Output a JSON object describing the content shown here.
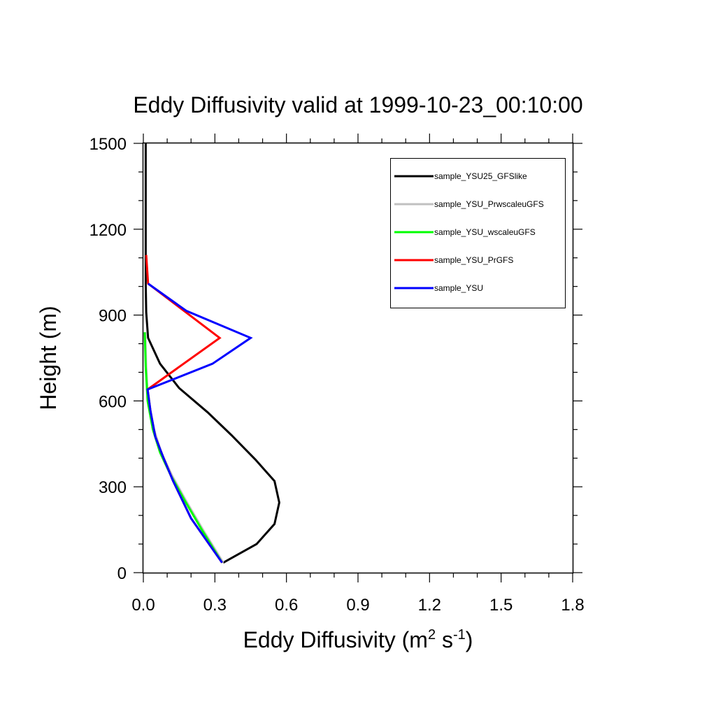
{
  "chart_data": {
    "type": "line",
    "title": "Eddy Diffusivity valid at 1999-10-23_00:10:00",
    "xlabel": {
      "base": "Eddy Diffusivity (m",
      "sup1": "2",
      "mid": " s",
      "sup2": "-1",
      "end": ")"
    },
    "ylabel": "Height (m)",
    "xlim": [
      0,
      1.8
    ],
    "ylim": [
      0,
      1500
    ],
    "x_major_ticks": [
      0,
      0.3,
      0.6,
      0.9,
      1.2,
      1.5,
      1.8
    ],
    "x_tick_labels": [
      "0.0",
      "0.3",
      "0.6",
      "0.9",
      "1.2",
      "1.5",
      "1.8"
    ],
    "x_minor_ticks": [
      0.1,
      0.2,
      0.4,
      0.5,
      0.7,
      0.8,
      1.0,
      1.1,
      1.3,
      1.4,
      1.6,
      1.7
    ],
    "y_major_ticks": [
      0,
      300,
      600,
      900,
      1200,
      1500
    ],
    "y_tick_labels": [
      "0",
      "300",
      "600",
      "900",
      "1200",
      "1500"
    ],
    "y_minor_ticks": [
      100,
      200,
      400,
      500,
      700,
      800,
      1000,
      1100,
      1300,
      1400
    ],
    "legend_position": "top-right",
    "series": [
      {
        "name": "sample_YSU25_GFSlike",
        "color": "#000000",
        "x": [
          0.335,
          0.475,
          0.55,
          0.57,
          0.55,
          0.47,
          0.37,
          0.27,
          0.15,
          0.07,
          0.02,
          0.012,
          0.01,
          0.01,
          0.01
        ],
        "y": [
          35,
          100,
          170,
          245,
          320,
          395,
          480,
          560,
          645,
          730,
          820,
          910,
          1010,
          1200,
          1500
        ]
      },
      {
        "name": "sample_YSU_PrwscaleuGFS",
        "color": "#c0c0c0",
        "x": [
          0.335,
          0.25,
          0.18,
          0.12,
          0.075,
          0.045,
          0.02,
          0.012,
          0.008
        ],
        "y": [
          35,
          150,
          250,
          340,
          420,
          500,
          600,
          720,
          840
        ]
      },
      {
        "name": "sample_YSU_wscaleuGFS",
        "color": "#00ff00",
        "x": [
          0.33,
          0.245,
          0.175,
          0.115,
          0.07,
          0.04,
          0.018,
          0.01,
          0.006
        ],
        "y": [
          35,
          150,
          250,
          340,
          420,
          500,
          600,
          720,
          840
        ]
      },
      {
        "name": "sample_YSU_PrGFS",
        "color": "#ff0000",
        "x": [
          0.33,
          0.2,
          0.125,
          0.085,
          0.05,
          0.03,
          0.018,
          0.32,
          0.02,
          0.012
        ],
        "y": [
          35,
          190,
          320,
          400,
          475,
          565,
          640,
          820,
          1010,
          1110
        ]
      },
      {
        "name": "sample_YSU",
        "color": "#0000ff",
        "x": [
          0.33,
          0.2,
          0.125,
          0.085,
          0.05,
          0.03,
          0.018,
          0.29,
          0.45,
          0.18,
          0.02
        ],
        "y": [
          35,
          190,
          320,
          400,
          475,
          565,
          640,
          730,
          820,
          915,
          1010
        ]
      }
    ]
  }
}
